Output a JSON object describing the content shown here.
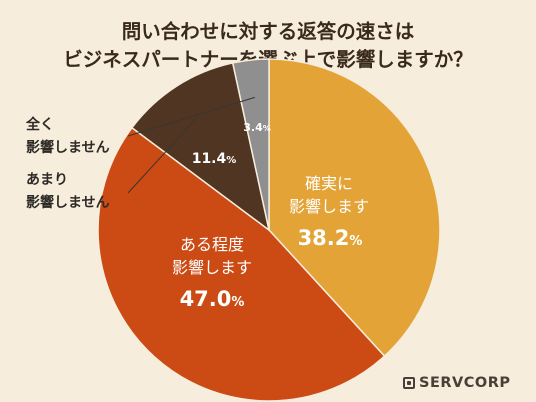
{
  "title_line1": "問い合わせに対する返答の速さは",
  "title_line2": "ビジネスパートナーを選ぶ上で影響しますか？",
  "brand": "SERVCORP",
  "chart_data": {
    "type": "pie",
    "title": "問い合わせに対する返答の速さはビジネスパートナーを選ぶ上で影響しますか？",
    "slices": [
      {
        "label_lines": [
          "確実に",
          "影響します"
        ],
        "value": 38.2,
        "value_text": "38.2",
        "color": "#e3a336",
        "text_color": "#ffffff"
      },
      {
        "label_lines": [
          "ある程度",
          "影響します"
        ],
        "value": 47.0,
        "value_text": "47.0",
        "color": "#cc4a14",
        "text_color": "#ffffff"
      },
      {
        "label_lines": [
          "あまり",
          "影響しません"
        ],
        "value": 11.4,
        "value_text": "11.4",
        "color": "#4f3522",
        "text_color": "#ffffff"
      },
      {
        "label_lines": [
          "全く",
          "影響しません"
        ],
        "value": 3.4,
        "value_text": "3.4",
        "color": "#8f8f8f",
        "text_color": "#ffffff"
      }
    ],
    "unit": "%",
    "start": "12 o'clock, clockwise"
  }
}
